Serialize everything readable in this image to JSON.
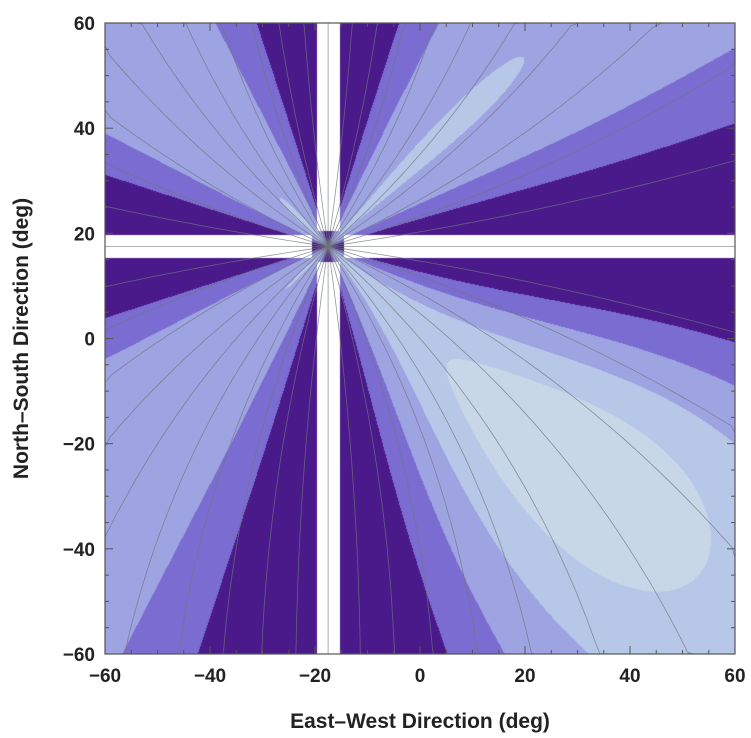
{
  "chart_data": {
    "type": "contour",
    "title": "",
    "xlabel": "East–West Direction (deg)",
    "ylabel": "North–South Direction (deg)",
    "xlim": [
      -60,
      60
    ],
    "ylim": [
      -60,
      60
    ],
    "xticks": [
      -60,
      -40,
      -20,
      0,
      20,
      40,
      60
    ],
    "yticks": [
      -60,
      -40,
      -20,
      0,
      20,
      40,
      60
    ],
    "xtick_labels": [
      "−60",
      "−40",
      "−20",
      "0",
      "20",
      "40",
      "60"
    ],
    "ytick_labels": [
      "−60",
      "−40",
      "−20",
      "0",
      "20",
      "40",
      "60"
    ],
    "minor_tick_step": 5,
    "center": {
      "x": -17.5,
      "y": 17.5
    },
    "clipped_white_band_halfwidth": 2.2,
    "levels": [
      -24,
      -20,
      -16,
      -12,
      -8,
      -4,
      0,
      4,
      8,
      12,
      16,
      20,
      24
    ],
    "colors": {
      "band_colors": [
        "#4b1a8a",
        "#7a6cd0",
        "#9ea3e2",
        "#b7c7e7",
        "#c7d7e7",
        "#d5dfe3",
        "#dde2e0",
        "#e6e3d6",
        "#ece6da"
      ],
      "contour_line": "#6f767c",
      "frame": "#555555",
      "background": "#ffffff"
    },
    "grid": false,
    "legend": "none"
  }
}
